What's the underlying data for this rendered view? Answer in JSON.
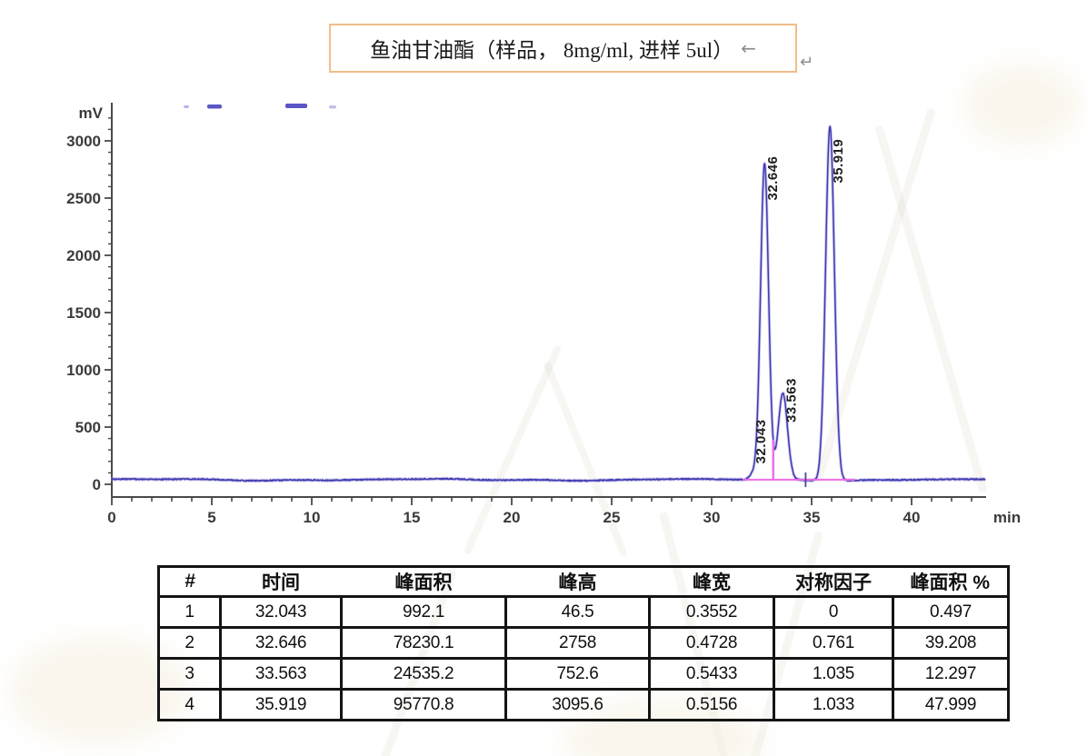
{
  "title": {
    "text": "鱼油甘油酯（样品， 8mg/ml, 进样  5ul）",
    "return_mark": "←",
    "outer_return_mark": "↵"
  },
  "chart_data": {
    "type": "line",
    "title": "",
    "xlabel": "min",
    "ylabel": "mV",
    "xlim": [
      0,
      43.7
    ],
    "ylim": [
      -150,
      3320
    ],
    "x_major_ticks": [
      0,
      5,
      10,
      15,
      20,
      25,
      30,
      35,
      40
    ],
    "x_minor_step": 1,
    "y_major_ticks": [
      0,
      500,
      1000,
      1500,
      2000,
      2500,
      3000
    ],
    "y_minor_step": 100,
    "grid": false,
    "legend": "none",
    "baseline_mv": 40,
    "trace_color": "#413ab0",
    "trace_halo_color": "#8f8cd9",
    "integration_color": "#ee6cea",
    "peaks": [
      {
        "rt": 32.043,
        "height_mv": 46.5,
        "sigma_min": 0.15,
        "label": "32.043",
        "label_base_mv": 180
      },
      {
        "rt": 32.646,
        "height_mv": 2758,
        "sigma_min": 0.2,
        "label": "32.646",
        "label_base_mv": 2480
      },
      {
        "rt": 33.563,
        "height_mv": 752.6,
        "sigma_min": 0.23,
        "label": "33.563",
        "label_base_mv": 540
      },
      {
        "rt": 35.919,
        "height_mv": 3095.6,
        "sigma_min": 0.22,
        "label": "35.919",
        "label_base_mv": 2630
      }
    ],
    "integration": {
      "baseline_from_min": 31.55,
      "baseline_to_min": 37.15,
      "drop_line_min": 33.08,
      "end_tick_min": 34.7
    }
  },
  "table": {
    "headers": [
      "#",
      "时间",
      "峰面积",
      "峰高",
      "峰宽",
      "对称因子",
      "峰面积 %"
    ],
    "rows": [
      [
        "1",
        "32.043",
        "992.1",
        "46.5",
        "0.3552",
        "0",
        "0.497"
      ],
      [
        "2",
        "32.646",
        "78230.1",
        "2758",
        "0.4728",
        "0.761",
        "39.208"
      ],
      [
        "3",
        "33.563",
        "24535.2",
        "752.6",
        "0.5433",
        "1.035",
        "12.297"
      ],
      [
        "4",
        "35.919",
        "95770.8",
        "3095.6",
        "0.5156",
        "1.033",
        "47.999"
      ]
    ]
  }
}
